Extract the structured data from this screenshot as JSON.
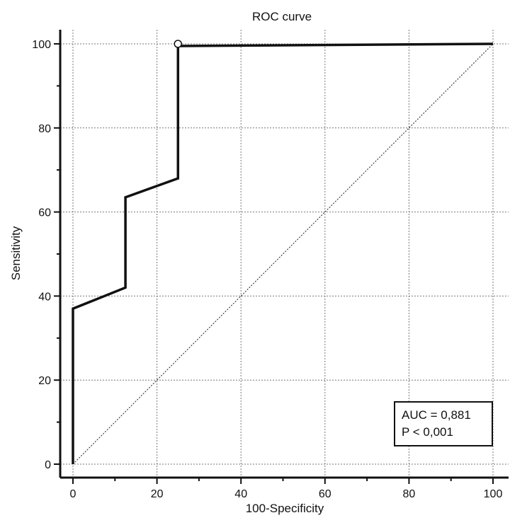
{
  "chart_data": {
    "type": "line",
    "title": "ROC curve",
    "xlabel": "100-Specificity",
    "ylabel": "Sensitivity",
    "xlim": [
      0,
      100
    ],
    "ylim": [
      0,
      100
    ],
    "x_ticks": [
      0,
      20,
      40,
      60,
      80,
      100
    ],
    "y_ticks": [
      0,
      20,
      40,
      60,
      80,
      100
    ],
    "grid": true,
    "series": [
      {
        "style": "solid-thick",
        "color": "#111111",
        "points": [
          [
            0,
            0
          ],
          [
            0,
            37
          ],
          [
            12.5,
            42
          ],
          [
            12.5,
            63.5
          ],
          [
            25,
            68
          ],
          [
            25,
            99.5
          ],
          [
            100,
            100
          ]
        ]
      },
      {
        "style": "dotted-diagonal",
        "color": "#444444",
        "points": [
          [
            0,
            0
          ],
          [
            100,
            100
          ]
        ]
      }
    ],
    "marker": {
      "x": 25,
      "y": 100,
      "shape": "open-circle"
    },
    "annotation": {
      "lines": [
        "AUC = 0,881",
        "P < 0,001"
      ],
      "placement": "bottom-right"
    }
  }
}
